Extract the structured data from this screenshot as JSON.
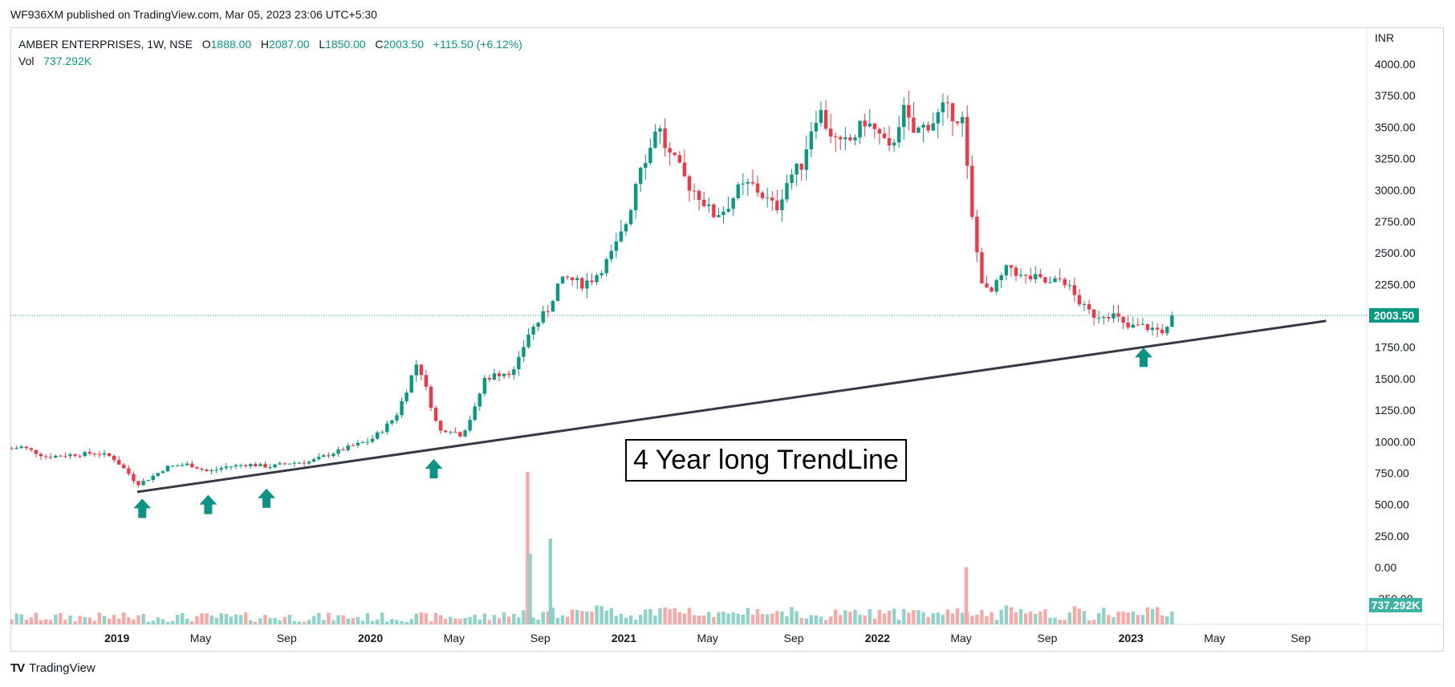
{
  "header": {
    "publisher_line": "WF936XM published on TradingView.com, Mar 05, 2023 23:06 UTC+5:30"
  },
  "legend": {
    "symbol": "AMBER ENTERPRISES, 1W, NSE",
    "open_label": "O",
    "open": "1888.00",
    "high_label": "H",
    "high": "2087.00",
    "low_label": "L",
    "low": "1850.00",
    "close_label": "C",
    "close": "2003.50",
    "change": "+115.50 (+6.12%)",
    "vol_label": "Vol",
    "vol": "737.292K"
  },
  "brand": {
    "logo": "TV",
    "name": "TradingView"
  },
  "annotation": {
    "text": "4 Year long TrendLine"
  },
  "chart_data": {
    "type": "candlestick",
    "currency": "INR",
    "y_ticks": [
      "4000.00",
      "3750.00",
      "3500.00",
      "3250.00",
      "3000.00",
      "2750.00",
      "2500.00",
      "2250.00",
      "2000.00",
      "1750.00",
      "1500.00",
      "1250.00",
      "1000.00",
      "750.00",
      "500.00",
      "250.00",
      "0.00",
      "-250.00"
    ],
    "ylim": [
      -410,
      4100
    ],
    "x_ticks": [
      {
        "label": "2019",
        "t": 2019.0,
        "bold": true
      },
      {
        "label": "May",
        "t": 2019.33,
        "bold": false
      },
      {
        "label": "Sep",
        "t": 2019.67,
        "bold": false
      },
      {
        "label": "2020",
        "t": 2020.0,
        "bold": true
      },
      {
        "label": "May",
        "t": 2020.33,
        "bold": false
      },
      {
        "label": "Sep",
        "t": 2020.67,
        "bold": false
      },
      {
        "label": "2021",
        "t": 2021.0,
        "bold": true
      },
      {
        "label": "May",
        "t": 2021.33,
        "bold": false
      },
      {
        "label": "Sep",
        "t": 2021.67,
        "bold": false
      },
      {
        "label": "2022",
        "t": 2022.0,
        "bold": true
      },
      {
        "label": "May",
        "t": 2022.33,
        "bold": false
      },
      {
        "label": "Sep",
        "t": 2022.67,
        "bold": false
      },
      {
        "label": "2023",
        "t": 2023.0,
        "bold": true
      },
      {
        "label": "May",
        "t": 2023.33,
        "bold": false
      },
      {
        "label": "Sep",
        "t": 2023.67,
        "bold": false
      }
    ],
    "xlim": [
      2018.58,
      2023.93
    ],
    "last_price": "2003.50",
    "last_volume": "737.292K",
    "trendline": {
      "start": [
        2019.08,
        600
      ],
      "end": [
        2023.77,
        1960
      ]
    },
    "support_arrows": [
      {
        "t": 2019.1,
        "price": 470
      },
      {
        "t": 2019.36,
        "price": 500
      },
      {
        "t": 2019.59,
        "price": 550
      },
      {
        "t": 2020.25,
        "price": 785
      },
      {
        "t": 2023.05,
        "price": 1670
      }
    ],
    "close_path": [
      [
        2018.58,
        940
      ],
      [
        2018.62,
        960
      ],
      [
        2018.66,
        930
      ],
      [
        2018.72,
        880
      ],
      [
        2018.78,
        890
      ],
      [
        2018.85,
        900
      ],
      [
        2018.92,
        910
      ],
      [
        2018.98,
        880
      ],
      [
        2019.04,
        760
      ],
      [
        2019.08,
        660
      ],
      [
        2019.13,
        710
      ],
      [
        2019.2,
        800
      ],
      [
        2019.28,
        820
      ],
      [
        2019.36,
        760
      ],
      [
        2019.43,
        800
      ],
      [
        2019.52,
        820
      ],
      [
        2019.6,
        800
      ],
      [
        2019.68,
        830
      ],
      [
        2019.76,
        840
      ],
      [
        2019.84,
        900
      ],
      [
        2019.92,
        960
      ],
      [
        2020.0,
        1010
      ],
      [
        2020.05,
        1100
      ],
      [
        2020.1,
        1200
      ],
      [
        2020.14,
        1400
      ],
      [
        2020.18,
        1620
      ],
      [
        2020.2,
        1550
      ],
      [
        2020.23,
        1350
      ],
      [
        2020.27,
        1080
      ],
      [
        2020.31,
        1100
      ],
      [
        2020.36,
        1050
      ],
      [
        2020.41,
        1250
      ],
      [
        2020.45,
        1500
      ],
      [
        2020.52,
        1550
      ],
      [
        2020.57,
        1560
      ],
      [
        2020.62,
        1850
      ],
      [
        2020.66,
        1950
      ],
      [
        2020.7,
        2050
      ],
      [
        2020.74,
        2250
      ],
      [
        2020.78,
        2300
      ],
      [
        2020.83,
        2250
      ],
      [
        2020.88,
        2300
      ],
      [
        2020.94,
        2450
      ],
      [
        2020.98,
        2600
      ],
      [
        2021.02,
        2800
      ],
      [
        2021.06,
        3200
      ],
      [
        2021.1,
        3300
      ],
      [
        2021.13,
        3550
      ],
      [
        2021.17,
        3300
      ],
      [
        2021.21,
        3200
      ],
      [
        2021.25,
        3050
      ],
      [
        2021.3,
        2950
      ],
      [
        2021.35,
        2800
      ],
      [
        2021.4,
        2850
      ],
      [
        2021.45,
        3000
      ],
      [
        2021.5,
        3050
      ],
      [
        2021.55,
        2950
      ],
      [
        2021.6,
        2850
      ],
      [
        2021.65,
        3100
      ],
      [
        2021.7,
        3200
      ],
      [
        2021.74,
        3500
      ],
      [
        2021.77,
        3650
      ],
      [
        2021.8,
        3500
      ],
      [
        2021.85,
        3350
      ],
      [
        2021.9,
        3400
      ],
      [
        2021.95,
        3550
      ],
      [
        2022.0,
        3450
      ],
      [
        2022.05,
        3300
      ],
      [
        2022.1,
        3650
      ],
      [
        2022.14,
        3450
      ],
      [
        2022.18,
        3500
      ],
      [
        2022.22,
        3550
      ],
      [
        2022.26,
        3650
      ],
      [
        2022.3,
        3600
      ],
      [
        2022.34,
        3550
      ],
      [
        2022.36,
        3000
      ],
      [
        2022.38,
        2650
      ],
      [
        2022.41,
        2300
      ],
      [
        2022.44,
        2150
      ],
      [
        2022.47,
        2250
      ],
      [
        2022.52,
        2400
      ],
      [
        2022.57,
        2300
      ],
      [
        2022.62,
        2300
      ],
      [
        2022.68,
        2250
      ],
      [
        2022.73,
        2300
      ],
      [
        2022.78,
        2150
      ],
      [
        2022.82,
        2050
      ],
      [
        2022.86,
        2000
      ],
      [
        2022.9,
        2020
      ],
      [
        2022.94,
        2000
      ],
      [
        2022.98,
        1900
      ],
      [
        2023.03,
        1920
      ],
      [
        2023.08,
        1900
      ],
      [
        2023.12,
        1880
      ],
      [
        2023.16,
        1900
      ],
      [
        2023.18,
        2003
      ]
    ],
    "volume_spikes": [
      {
        "t": 2020.62,
        "value": 760,
        "up": false
      },
      {
        "t": 2020.63,
        "value": 110,
        "up": true
      },
      {
        "t": 2020.71,
        "value": 230,
        "up": true
      },
      {
        "t": 2022.35,
        "value": 0,
        "up": false
      }
    ],
    "colors": {
      "up": "#089981",
      "down": "#f23645",
      "up_volume": "#8ed3c7",
      "down_volume": "#f7a9a7",
      "trendline": "#363a45",
      "arrow": "#0b9483",
      "last_price_line": "#089981"
    }
  }
}
